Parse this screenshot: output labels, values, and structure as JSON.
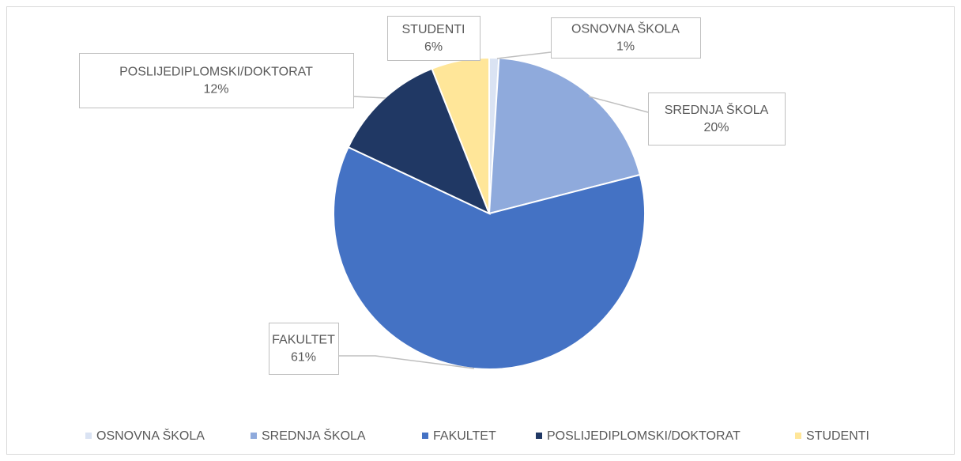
{
  "chart_data": {
    "type": "pie",
    "categories": [
      "OSNOVNA ŠKOLA",
      "SREDNJA ŠKOLA",
      "FAKULTET",
      "POSLIJEDIPLOMSKI/DOKTORAT",
      "STUDENTI"
    ],
    "values": [
      1,
      20,
      61,
      12,
      6
    ],
    "value_labels": [
      "1%",
      "20%",
      "61%",
      "12%",
      "6%"
    ],
    "colors": [
      "#dae3f3",
      "#8faadc",
      "#4472c4",
      "#203864",
      "#ffe699"
    ],
    "legend": "bottom"
  }
}
